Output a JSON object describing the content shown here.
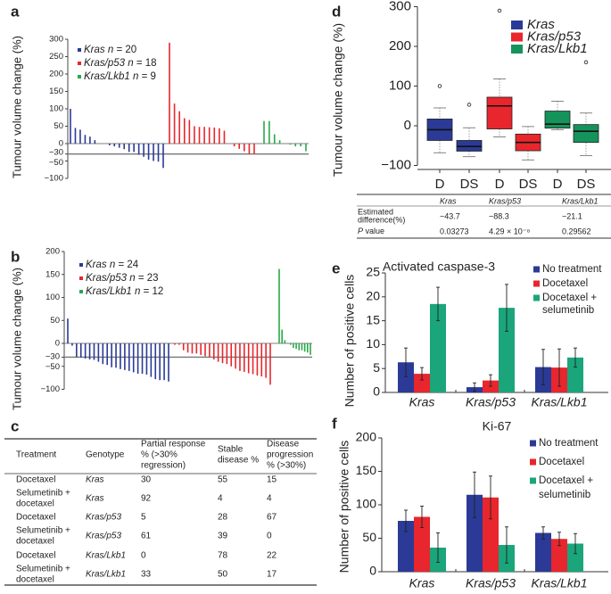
{
  "panel_labels": [
    "a",
    "b",
    "c",
    "d",
    "e",
    "f"
  ],
  "colors": {
    "kras": "#2b3a96",
    "kras_p53": "#e8262d",
    "kras_lkb1": "#2aa84a",
    "kras_lkb1_box": "#14935a",
    "combo": "#1aa57a"
  },
  "chart_data": [
    {
      "panel": "a",
      "type": "bar",
      "ylabel": "Tumour volume change (%)",
      "ylim": [
        -100,
        300
      ],
      "yticks": [
        300,
        250,
        200,
        150,
        100,
        50,
        0,
        -30,
        -50,
        -100
      ],
      "reference_line": -30,
      "series": [
        {
          "name": "Kras",
          "n": 20,
          "values": [
            100,
            45,
            40,
            25,
            20,
            10,
            0,
            0,
            -5,
            -8,
            -12,
            -16,
            -24,
            -24,
            -32,
            -38,
            -46,
            -50,
            -52,
            -70
          ]
        },
        {
          "name": "Kras/p53",
          "n": 18,
          "values": [
            290,
            115,
            93,
            73,
            68,
            50,
            48,
            48,
            47,
            46,
            44,
            37,
            0,
            -8,
            -15,
            -22,
            -30,
            -30
          ]
        },
        {
          "name": "Kras/Lkb1",
          "n": 9,
          "values": [
            65,
            65,
            27,
            10,
            0,
            -3,
            -8,
            -8,
            -22
          ]
        }
      ]
    },
    {
      "panel": "b",
      "type": "bar",
      "ylabel": "Tumour volume change (%)",
      "ylim": [
        -100,
        200
      ],
      "yticks": [
        200,
        150,
        100,
        50,
        0,
        -30,
        -50,
        -100
      ],
      "reference_line": -30,
      "series": [
        {
          "name": "Kras",
          "n": 24,
          "values": [
            54,
            -5,
            -30,
            -31,
            -33,
            -35,
            -36,
            -40,
            -45,
            -47,
            -52,
            -53,
            -56,
            -58,
            -60,
            -63,
            -66,
            -66,
            -68,
            -73,
            -78,
            -80,
            -80,
            -83
          ]
        },
        {
          "name": "Kras/p53",
          "n": 23,
          "values": [
            -3,
            -3,
            -15,
            -20,
            -22,
            -22,
            -25,
            -28,
            -30,
            -35,
            -40,
            -43,
            -45,
            -50,
            -55,
            -60,
            -62,
            -65,
            -67,
            -70,
            -72,
            -75,
            -90
          ]
        },
        {
          "name": "Kras/Lkb1",
          "n": 12,
          "values": [
            162,
            30,
            7,
            1,
            -3,
            -10,
            -12,
            -15,
            -15,
            -18,
            -20,
            -25
          ]
        }
      ]
    },
    {
      "panel": "c",
      "type": "table",
      "columns": [
        "Treatment",
        "Genotype",
        "Partial response % (>30% regression)",
        "Stable disease %",
        "Disease progression % (>30%)"
      ],
      "column_lines": [
        [
          "Treatment"
        ],
        [
          "Genotype"
        ],
        [
          "Partial response",
          "% (>30%",
          "regression)"
        ],
        [
          "Stable",
          "disease %"
        ],
        [
          "Disease",
          "progression",
          "% (>30%)"
        ]
      ],
      "rows": [
        {
          "treatment": [
            "Docetaxel"
          ],
          "genotype": "Kras",
          "partial": "30",
          "stable": "55",
          "progression": "15"
        },
        {
          "treatment": [
            "Selumetinib +",
            "docetaxel"
          ],
          "genotype": "Kras",
          "partial": "92",
          "stable": "4",
          "progression": "4"
        },
        {
          "treatment": [
            "Docetaxel"
          ],
          "genotype": "Kras/p53",
          "partial": "5",
          "stable": "28",
          "progression": "67"
        },
        {
          "treatment": [
            "Selumetinib +",
            "docetaxel"
          ],
          "genotype": "Kras/p53",
          "partial": "61",
          "stable": "39",
          "progression": "0"
        },
        {
          "treatment": [
            "Docetaxel"
          ],
          "genotype": "Kras/Lkb1",
          "partial": "0",
          "stable": "78",
          "progression": "22"
        },
        {
          "treatment": [
            "Selumetinib +",
            "docetaxel"
          ],
          "genotype": "Kras/Lkb1",
          "partial": "33",
          "stable": "50",
          "progression": "17"
        }
      ]
    },
    {
      "panel": "d",
      "type": "box",
      "ylabel": "Tumour volume change (%)",
      "ylim": [
        -100,
        300
      ],
      "yticks": [
        300,
        200,
        100,
        0,
        -100
      ],
      "categories": [
        "D",
        "DS",
        "D",
        "DS",
        "D",
        "DS"
      ],
      "legend": [
        "Kras",
        "Kras/p53",
        "Kras/Lkb1"
      ],
      "boxes": [
        {
          "group": "Kras",
          "min": -68,
          "q1": -37,
          "median": -10,
          "q3": 17,
          "max": 45,
          "outliers": [
            100
          ]
        },
        {
          "group": "Kras",
          "min": -78,
          "q1": -64,
          "median": -52,
          "q3": -37,
          "max": -5,
          "outliers": [
            53
          ]
        },
        {
          "group": "Kras/p53",
          "min": -28,
          "q1": -8,
          "median": 50,
          "q3": 72,
          "max": 118,
          "outliers": [
            290
          ]
        },
        {
          "group": "Kras/p53",
          "min": -86,
          "q1": -63,
          "median": -42,
          "q3": -21,
          "max": -2,
          "outliers": []
        },
        {
          "group": "Kras/Lkb1",
          "min": -10,
          "q1": -6,
          "median": 4,
          "q3": 37,
          "max": 62,
          "outliers": []
        },
        {
          "group": "Kras/Lkb1",
          "min": -75,
          "q1": -42,
          "median": -14,
          "q3": 3,
          "max": 32,
          "outliers": [
            160
          ]
        }
      ],
      "table": {
        "columns": [
          "Kras",
          "Kras/p53",
          "Kras/Lkb1"
        ],
        "rows": [
          {
            "label": [
              "Estimated",
              "difference(%)"
            ],
            "values": [
              "−43.7",
              "−88.3",
              "−21.1"
            ]
          },
          {
            "label": [
              "P value"
            ],
            "values": [
              "0.03273",
              "4.29 × 10⁻⁸",
              "0.29562"
            ]
          }
        ]
      }
    },
    {
      "panel": "e",
      "type": "bar",
      "title": "Activated caspase-3",
      "ylabel": "Number of positive cells",
      "ylim": [
        0,
        25
      ],
      "yticks": [
        0,
        5,
        10,
        15,
        20,
        25
      ],
      "categories": [
        "Kras",
        "Kras/p53",
        "Kras/Lkb1"
      ],
      "series": [
        {
          "name": "No treatment",
          "values": [
            6.3,
            1.1,
            5.3
          ],
          "errors": [
            3.0,
            0.9,
            3.7
          ]
        },
        {
          "name": "Docetaxel",
          "values": [
            3.9,
            2.5,
            5.2
          ],
          "errors": [
            1.3,
            1.2,
            3.9
          ]
        },
        {
          "name": "Docetaxel + selumetinib",
          "legend_lines": [
            "Docetaxel +",
            "selumetinib"
          ],
          "values": [
            18.5,
            17.7,
            7.3
          ],
          "errors": [
            3.5,
            4.9,
            2.0
          ]
        }
      ]
    },
    {
      "panel": "f",
      "type": "bar",
      "title": "Ki-67",
      "ylabel": "Number of positive cells",
      "ylim": [
        0,
        200
      ],
      "yticks": [
        0,
        50,
        100,
        150,
        200
      ],
      "categories": [
        "Kras",
        "Kras/p53",
        "Kras/Lkb1"
      ],
      "series": [
        {
          "name": "No treatment",
          "values": [
            76,
            115,
            58
          ],
          "errors": [
            16,
            34,
            9
          ]
        },
        {
          "name": "Docetaxel",
          "values": [
            82,
            111,
            49
          ],
          "errors": [
            16,
            32,
            10
          ]
        },
        {
          "name": "Docetaxel + selumetinib",
          "legend_lines": [
            "Docetaxel +",
            "selumetinib"
          ],
          "values": [
            36,
            40,
            42
          ],
          "errors": [
            22,
            27,
            15
          ]
        }
      ]
    }
  ]
}
